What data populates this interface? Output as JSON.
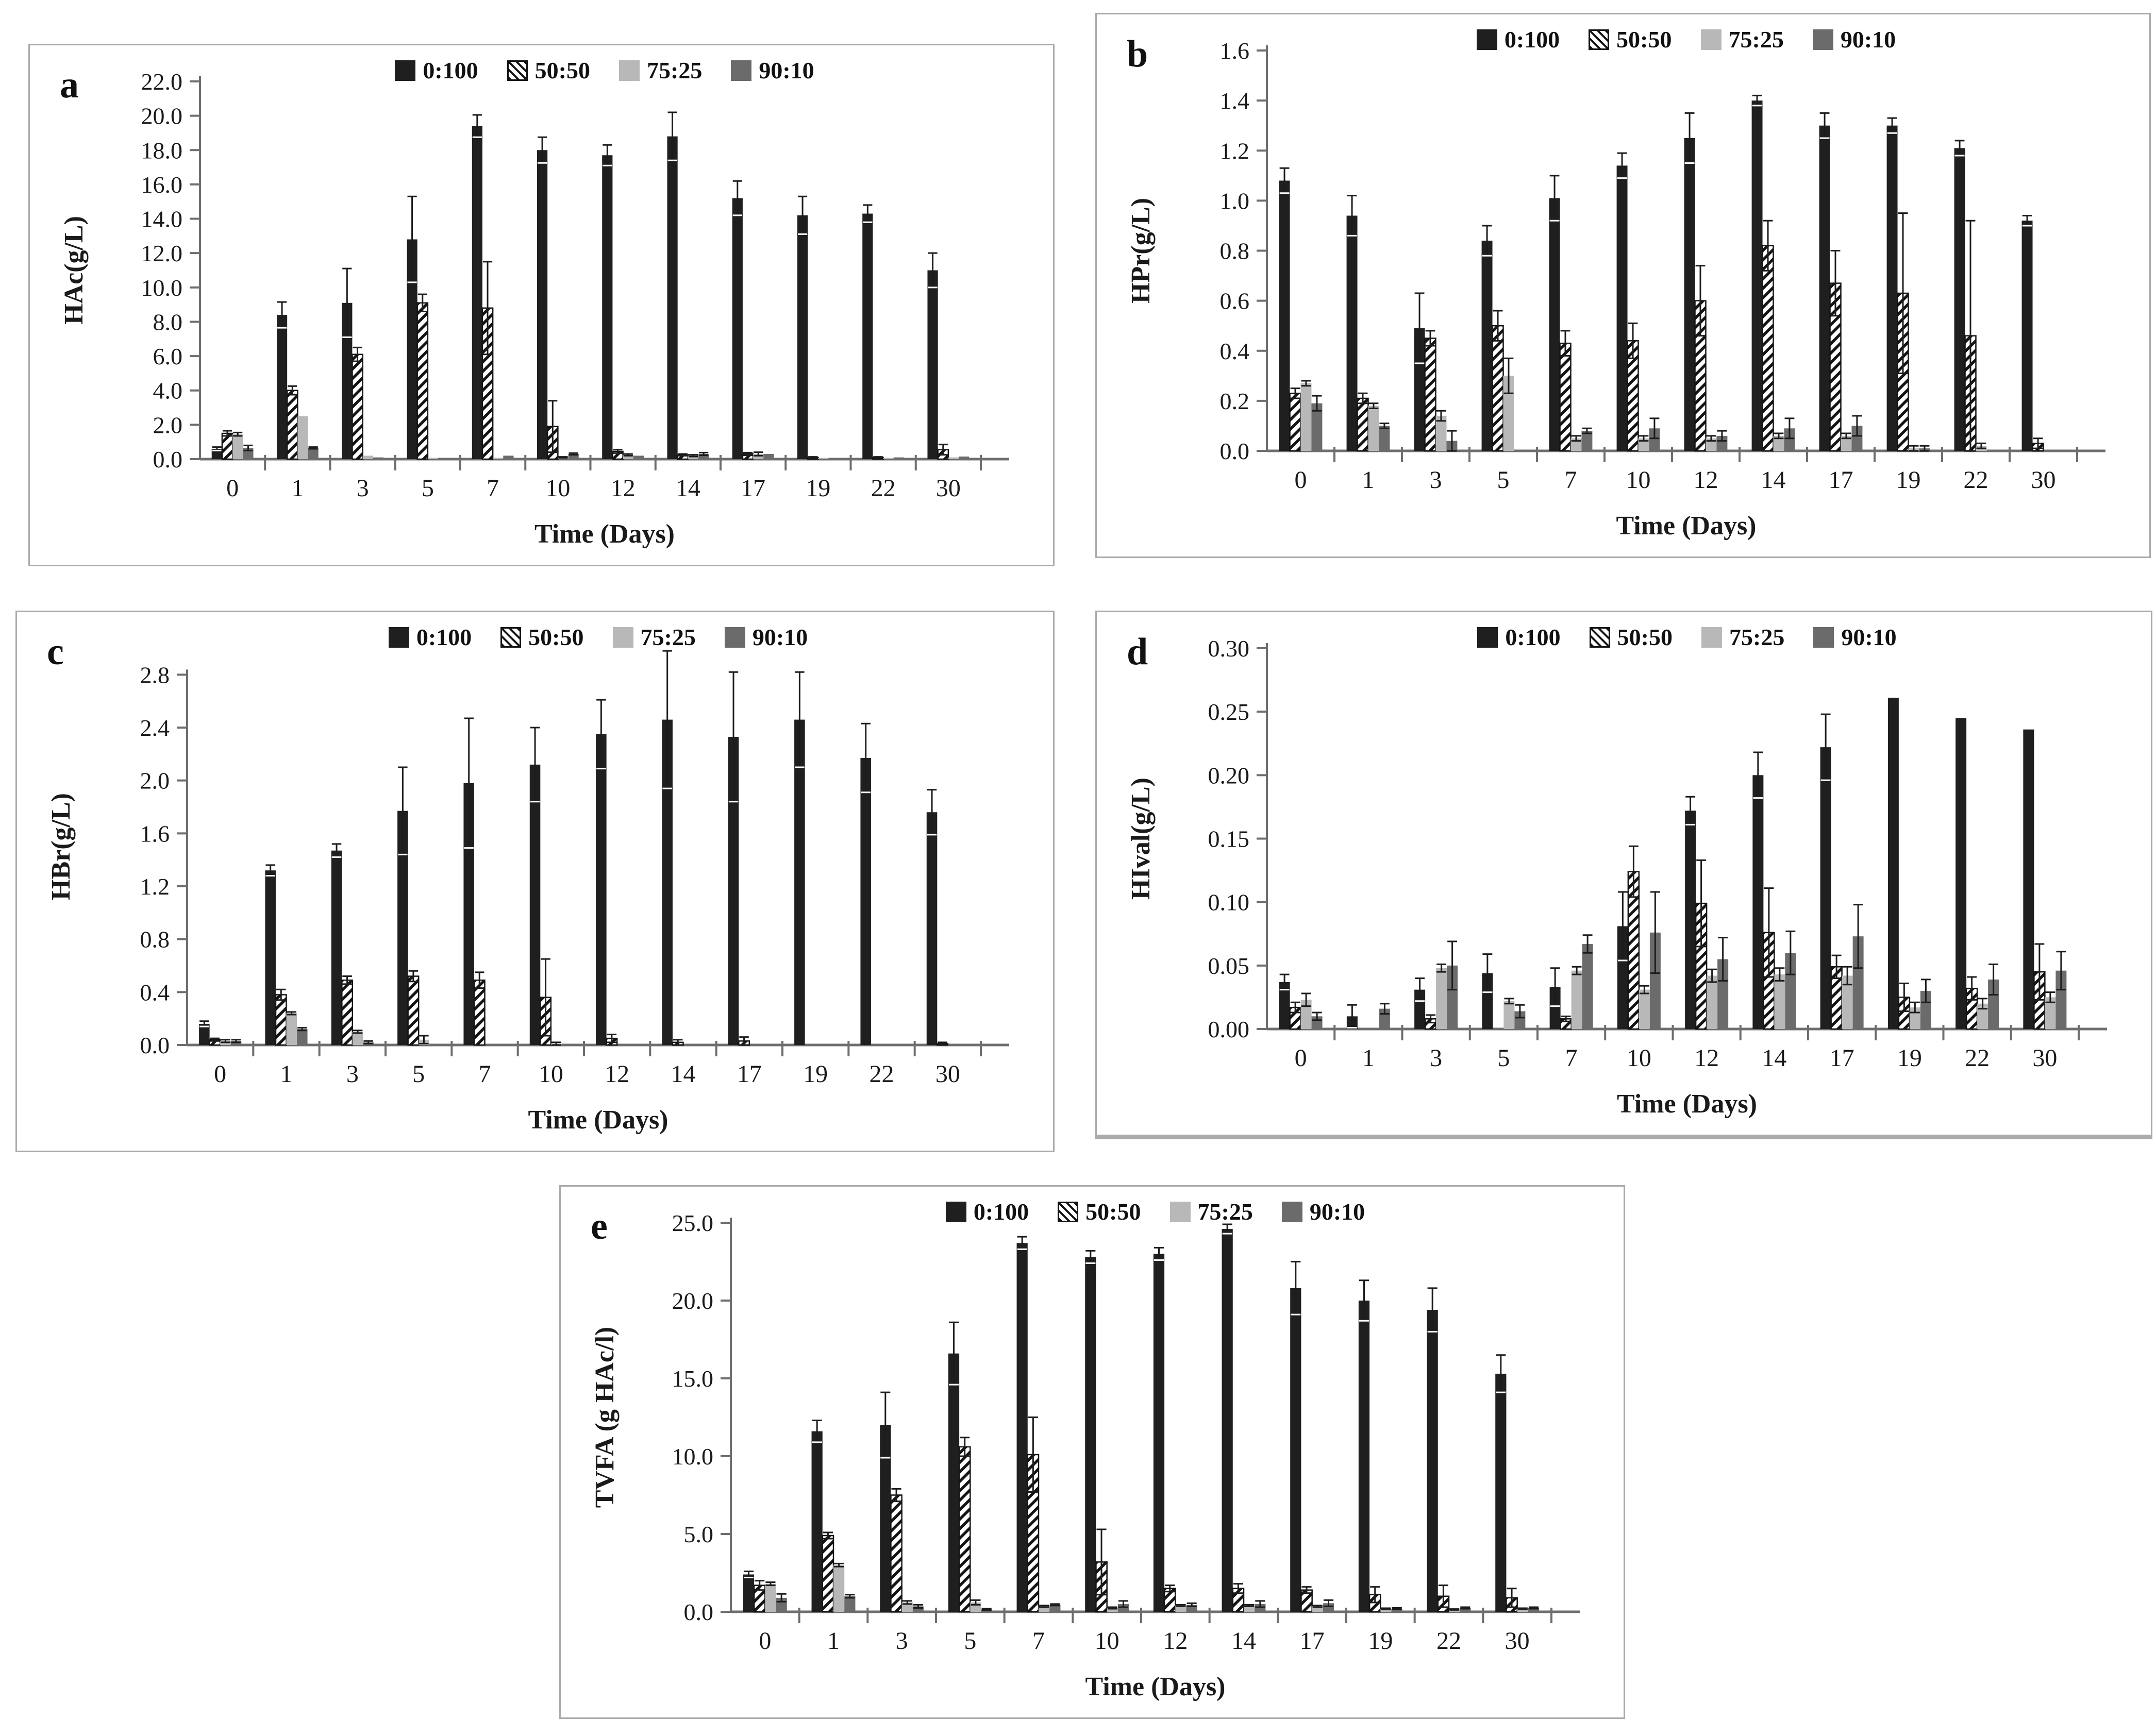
{
  "palette": {
    "solid_black": "#1f1f1f",
    "hatch_fill": "#ffffff",
    "hatch_line": "#141414",
    "light_gray": "#b8b8b8",
    "dark_gray": "#6b6b6b",
    "axis": "#6e6e6e",
    "tick": "#555555",
    "error": "#1c1c1c",
    "frame": "#ababab",
    "text": "#111111"
  },
  "legend_labels": [
    "0:100",
    "50:50",
    "75:25",
    "90:10"
  ],
  "chart_data": [
    {
      "id": "a",
      "panel_label": "a",
      "type": "bar",
      "ylabel": "HAc(g/L)",
      "xlabel": "Time (Days)",
      "yscale_max": 22,
      "ytick_max": 22,
      "ystep": 2,
      "ydecimals": 1,
      "categories": [
        "0",
        "1",
        "3",
        "5",
        "7",
        "10",
        "12",
        "14",
        "17",
        "19",
        "22",
        "30"
      ],
      "series": [
        {
          "name": "0:100",
          "style": "solid_black",
          "values": [
            0.6,
            8.4,
            9.1,
            12.8,
            19.4,
            18.0,
            17.7,
            18.8,
            15.2,
            14.2,
            14.3,
            11.0
          ],
          "errors": [
            0.1,
            0.75,
            2.0,
            2.5,
            0.65,
            0.75,
            0.6,
            1.4,
            1.0,
            1.1,
            0.5,
            1.0
          ]
        },
        {
          "name": "50:50",
          "style": "hatch",
          "values": [
            1.5,
            4.0,
            6.1,
            9.1,
            8.8,
            1.9,
            0.45,
            0.25,
            0.3,
            0.1,
            0.1,
            0.55
          ],
          "errors": [
            0.15,
            0.25,
            0.4,
            0.5,
            2.7,
            1.5,
            0.1,
            0.05,
            0.08,
            0.03,
            0.03,
            0.3
          ]
        },
        {
          "name": "75:25",
          "style": "light",
          "values": [
            1.45,
            2.5,
            0.2,
            0.05,
            0.08,
            0.1,
            0.25,
            0.2,
            0.3,
            0.03,
            0.05,
            0.1
          ],
          "errors": [
            0.1,
            0,
            0,
            0,
            0,
            0.03,
            0.05,
            0.05,
            0.1,
            0,
            0,
            0
          ]
        },
        {
          "name": "90:10",
          "style": "dark",
          "values": [
            0.65,
            0.65,
            0.1,
            0.05,
            0.2,
            0.3,
            0.2,
            0.3,
            0.3,
            0.02,
            0.1,
            0.15
          ],
          "errors": [
            0.15,
            0.05,
            0,
            0,
            0,
            0.05,
            0,
            0.08,
            0,
            0,
            0,
            0
          ]
        }
      ]
    },
    {
      "id": "b",
      "panel_label": "b",
      "type": "bar",
      "ylabel": "HPr(g/L)",
      "xlabel": "Time (Days)",
      "yscale_max": 1.6,
      "ytick_max": 1.6,
      "ystep": 0.2,
      "ydecimals": 1,
      "categories": [
        "0",
        "1",
        "3",
        "5",
        "7",
        "10",
        "12",
        "14",
        "17",
        "19",
        "22",
        "30"
      ],
      "series": [
        {
          "name": "0:100",
          "style": "solid_black",
          "values": [
            1.08,
            0.94,
            0.49,
            0.84,
            1.01,
            1.14,
            1.25,
            1.4,
            1.3,
            1.3,
            1.21,
            0.92
          ],
          "errors": [
            0.05,
            0.08,
            0.14,
            0.06,
            0.09,
            0.05,
            0.1,
            0.02,
            0.05,
            0.03,
            0.03,
            0.02
          ]
        },
        {
          "name": "50:50",
          "style": "hatch",
          "values": [
            0.23,
            0.21,
            0.45,
            0.5,
            0.43,
            0.44,
            0.6,
            0.82,
            0.67,
            0.63,
            0.46,
            0.03
          ],
          "errors": [
            0.02,
            0.02,
            0.03,
            0.06,
            0.05,
            0.07,
            0.14,
            0.1,
            0.13,
            0.32,
            0.46,
            0.02
          ]
        },
        {
          "name": "75:25",
          "style": "light",
          "values": [
            0.27,
            0.18,
            0.14,
            0.3,
            0.05,
            0.05,
            0.05,
            0.06,
            0.06,
            0.01,
            0.02,
            0
          ],
          "errors": [
            0.01,
            0.01,
            0.02,
            0.07,
            0.01,
            0.01,
            0.01,
            0.01,
            0.01,
            0.01,
            0.01,
            0
          ]
        },
        {
          "name": "90:10",
          "style": "dark",
          "values": [
            0.19,
            0.1,
            0.04,
            0,
            0.08,
            0.09,
            0.06,
            0.09,
            0.1,
            0.01,
            0,
            0
          ],
          "errors": [
            0.03,
            0.01,
            0.04,
            0,
            0.01,
            0.04,
            0.02,
            0.04,
            0.04,
            0.01,
            0,
            0
          ]
        }
      ]
    },
    {
      "id": "c",
      "panel_label": "c",
      "type": "bar",
      "ylabel": "HBr(g/L)",
      "xlabel": "Time (Days)",
      "yscale_max": 3.0,
      "ytick_max": 2.8,
      "ystep": 0.4,
      "ydecimals": 1,
      "categories": [
        "0",
        "1",
        "3",
        "5",
        "7",
        "10",
        "12",
        "14",
        "17",
        "19",
        "22",
        "30"
      ],
      "series": [
        {
          "name": "0:100",
          "style": "solid_black",
          "values": [
            0.16,
            1.32,
            1.47,
            1.77,
            1.98,
            2.12,
            2.35,
            2.46,
            2.33,
            2.46,
            2.17,
            1.76
          ],
          "errors": [
            0.02,
            0.04,
            0.05,
            0.33,
            0.49,
            0.28,
            0.26,
            0.52,
            0.49,
            0.36,
            0.26,
            0.17
          ]
        },
        {
          "name": "50:50",
          "style": "hatch",
          "values": [
            0.04,
            0.38,
            0.49,
            0.52,
            0.49,
            0.36,
            0.05,
            0.02,
            0.03,
            0,
            0,
            0.01
          ],
          "errors": [
            0.01,
            0.04,
            0.03,
            0.04,
            0.06,
            0.29,
            0.03,
            0.02,
            0.03,
            0,
            0,
            0.01
          ]
        },
        {
          "name": "75:25",
          "style": "light",
          "values": [
            0.03,
            0.24,
            0.1,
            0.04,
            0,
            0.01,
            0,
            0,
            0,
            0,
            0,
            0
          ],
          "errors": [
            0.01,
            0.01,
            0.01,
            0.03,
            0,
            0.01,
            0,
            0,
            0,
            0,
            0,
            0
          ]
        },
        {
          "name": "90:10",
          "style": "dark",
          "values": [
            0.03,
            0.12,
            0.02,
            0,
            0,
            0,
            0,
            0,
            0,
            0,
            0,
            0
          ],
          "errors": [
            0.01,
            0.01,
            0.01,
            0,
            0,
            0,
            0,
            0,
            0,
            0,
            0,
            0
          ]
        }
      ]
    },
    {
      "id": "d",
      "panel_label": "d",
      "type": "bar",
      "ylabel": "HIval(g/L)",
      "xlabel": "Time (Days)",
      "yscale_max": 0.3,
      "ytick_max": 0.3,
      "ystep": 0.05,
      "ydecimals": 2,
      "categories": [
        "0",
        "1",
        "3",
        "5",
        "7",
        "10",
        "12",
        "14",
        "17",
        "19",
        "22",
        "30"
      ],
      "series": [
        {
          "name": "0:100",
          "style": "solid_black",
          "values": [
            0.037,
            0.01,
            0.031,
            0.044,
            0.033,
            0.081,
            0.172,
            0.2,
            0.222,
            0.261,
            0.245,
            0.236
          ],
          "errors": [
            0.006,
            0.009,
            0.009,
            0.015,
            0.015,
            0.027,
            0.011,
            0.018,
            0.026,
            0,
            0,
            0
          ]
        },
        {
          "name": "50:50",
          "style": "hatch",
          "values": [
            0.017,
            0,
            0.008,
            0,
            0.008,
            0.124,
            0.099,
            0.076,
            0.049,
            0.025,
            0.032,
            0.045
          ],
          "errors": [
            0.004,
            0,
            0.003,
            0,
            0.002,
            0.02,
            0.034,
            0.035,
            0.009,
            0.011,
            0.009,
            0.022
          ]
        },
        {
          "name": "75:25",
          "style": "light",
          "values": [
            0.023,
            0,
            0.048,
            0.022,
            0.046,
            0.031,
            0.042,
            0.043,
            0.042,
            0.017,
            0.02,
            0.025
          ],
          "errors": [
            0.005,
            0,
            0.003,
            0.002,
            0.003,
            0.003,
            0.005,
            0.005,
            0.007,
            0.004,
            0.004,
            0.004
          ]
        },
        {
          "name": "90:10",
          "style": "dark",
          "values": [
            0.01,
            0.016,
            0.05,
            0.014,
            0.067,
            0.076,
            0.055,
            0.06,
            0.073,
            0.03,
            0.039,
            0.046
          ],
          "errors": [
            0.003,
            0.004,
            0.019,
            0.005,
            0.007,
            0.032,
            0.017,
            0.017,
            0.025,
            0.009,
            0.012,
            0.015
          ]
        }
      ]
    },
    {
      "id": "e",
      "panel_label": "e",
      "type": "bar",
      "ylabel": "TVFA (g HAc/l)",
      "xlabel": "Time (Days)",
      "yscale_max": 25,
      "ytick_max": 25,
      "ystep": 5,
      "ydecimals": 1,
      "categories": [
        "0",
        "1",
        "3",
        "5",
        "7",
        "10",
        "12",
        "14",
        "17",
        "19",
        "22",
        "30"
      ],
      "series": [
        {
          "name": "0:100",
          "style": "solid_black",
          "values": [
            2.4,
            11.6,
            12.0,
            16.6,
            23.7,
            22.8,
            23.0,
            24.6,
            20.8,
            20.0,
            19.4,
            15.3
          ],
          "errors": [
            0.2,
            0.7,
            2.1,
            2.0,
            0.4,
            0.4,
            0.4,
            0.3,
            1.7,
            1.3,
            1.4,
            1.2
          ]
        },
        {
          "name": "50:50",
          "style": "hatch",
          "values": [
            1.7,
            4.9,
            7.5,
            10.6,
            10.1,
            3.2,
            1.5,
            1.5,
            1.4,
            1.1,
            1.0,
            0.9
          ],
          "errors": [
            0.3,
            0.2,
            0.4,
            0.6,
            2.4,
            2.1,
            0.2,
            0.3,
            0.2,
            0.5,
            0.7,
            0.6
          ]
        },
        {
          "name": "75:25",
          "style": "light",
          "values": [
            1.8,
            3.0,
            0.6,
            0.6,
            0.35,
            0.25,
            0.4,
            0.4,
            0.35,
            0.2,
            0.15,
            0.2
          ],
          "errors": [
            0.1,
            0.1,
            0.1,
            0.15,
            0.05,
            0.05,
            0.05,
            0.05,
            0.05,
            0.03,
            0.03,
            0.03
          ]
        },
        {
          "name": "90:10",
          "style": "dark",
          "values": [
            0.9,
            1.0,
            0.35,
            0.15,
            0.45,
            0.5,
            0.45,
            0.5,
            0.55,
            0.2,
            0.25,
            0.25
          ],
          "errors": [
            0.25,
            0.1,
            0.1,
            0.05,
            0.05,
            0.2,
            0.1,
            0.2,
            0.2,
            0.05,
            0.05,
            0.05
          ]
        }
      ]
    }
  ]
}
